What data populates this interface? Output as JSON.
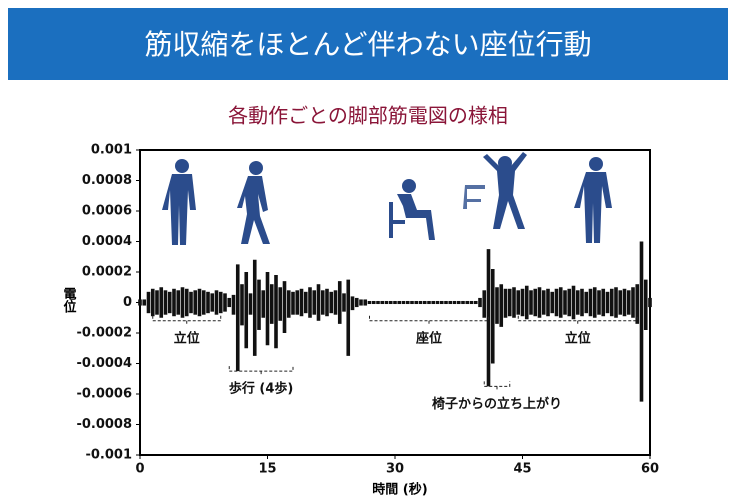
{
  "header": {
    "title": "筋収縮をほとんど伴わない座位行動"
  },
  "chart_data": {
    "type": "band",
    "title": "各動作ごとの脚部筋電図の様相",
    "x_label": "時間 (秒)",
    "y_label": "電位",
    "color": "#111111",
    "xlim": [
      0,
      60
    ],
    "xticks": [
      0,
      15,
      30,
      45,
      60
    ],
    "ylim": [
      -0.001,
      0.001
    ],
    "yticks": [
      0.001,
      0.0008,
      0.0006,
      0.0004,
      0.0002,
      0,
      -0.0002,
      -0.0004,
      -0.0006,
      -0.0008,
      -0.001
    ],
    "x": [
      0,
      0.5,
      1,
      1.5,
      2,
      2.5,
      3,
      3.5,
      4,
      4.5,
      5,
      5.5,
      6,
      6.5,
      7,
      7.5,
      8,
      8.5,
      9,
      9.5,
      10,
      10.5,
      11,
      11.5,
      12,
      12.5,
      13,
      13.5,
      14,
      14.5,
      15,
      15.5,
      16,
      16.5,
      17,
      17.5,
      18,
      18.5,
      19,
      19.5,
      20,
      20.5,
      21,
      21.5,
      22,
      22.5,
      23,
      23.5,
      24,
      24.5,
      25,
      25.5,
      26,
      26.5,
      27,
      27.5,
      28,
      28.5,
      29,
      29.5,
      30,
      30.5,
      31,
      31.5,
      32,
      32.5,
      33,
      33.5,
      34,
      34.5,
      35,
      35.5,
      36,
      36.5,
      37,
      37.5,
      38,
      38.5,
      39,
      39.5,
      40,
      40.5,
      41,
      41.5,
      42,
      42.5,
      43,
      43.5,
      44,
      44.5,
      45,
      45.5,
      46,
      46.5,
      47,
      47.5,
      48,
      48.5,
      49,
      49.5,
      50,
      50.5,
      51,
      51.5,
      52,
      52.5,
      53,
      53.5,
      54,
      54.5,
      55,
      55.5,
      56,
      56.5,
      57,
      57.5,
      58,
      58.5,
      59,
      59.5,
      60
    ],
    "series": [
      {
        "values": [
          2e-05,
          2e-05,
          7e-05,
          9e-05,
          8e-05,
          0.0001,
          8e-05,
          7e-05,
          9e-05,
          8e-05,
          0.0001,
          9e-05,
          7e-05,
          8e-05,
          9e-05,
          8e-05,
          7e-05,
          6e-05,
          8e-05,
          7e-05,
          6e-05,
          3e-05,
          5e-05,
          0.00025,
          0.00012,
          0.0002,
          6e-05,
          0.00028,
          0.00015,
          8e-05,
          0.0002,
          0.00012,
          0.00018,
          0.0001,
          0.00014,
          8e-05,
          7e-05,
          8e-05,
          9e-05,
          7e-05,
          0.0001,
          8e-05,
          0.00012,
          8e-05,
          9e-05,
          7e-05,
          8e-05,
          0.00014,
          6e-05,
          0.00015,
          4e-05,
          3e-05,
          2e-05,
          2e-05,
          1e-05,
          1e-05,
          1e-05,
          1e-05,
          1e-05,
          1e-05,
          1e-05,
          1e-05,
          1e-05,
          1e-05,
          1e-05,
          1e-05,
          1e-05,
          1e-05,
          1e-05,
          1e-05,
          1e-05,
          1e-05,
          1e-05,
          1e-05,
          1e-05,
          1e-05,
          1e-05,
          1e-05,
          1e-05,
          1e-05,
          3e-05,
          8e-05,
          0.00035,
          0.00022,
          0.0001,
          0.00012,
          9e-05,
          9e-05,
          0.0001,
          8e-05,
          9e-05,
          0.00011,
          8e-05,
          9e-05,
          0.0001,
          8e-05,
          9e-05,
          7e-05,
          9e-05,
          0.0001,
          8e-05,
          9e-05,
          0.00011,
          8e-05,
          9e-05,
          7e-05,
          9e-05,
          0.0001,
          8e-05,
          9e-05,
          7e-05,
          9e-05,
          0.0001,
          8e-05,
          9e-05,
          8e-05,
          0.0001,
          0.00012,
          0.0004,
          0.00015,
          3e-05
        ]
      },
      {
        "values": [
          -2e-05,
          -2e-05,
          -7e-05,
          -9e-05,
          -8e-05,
          -0.0001,
          -8e-05,
          -7e-05,
          -9e-05,
          -8e-05,
          -0.0001,
          -9e-05,
          -7e-05,
          -8e-05,
          -9e-05,
          -8e-05,
          -7e-05,
          -6e-05,
          -8e-05,
          -7e-05,
          -6e-05,
          -3e-05,
          -8e-05,
          -0.00045,
          -0.00015,
          -0.0003,
          -8e-05,
          -0.00035,
          -0.00018,
          -0.0001,
          -0.00028,
          -0.00014,
          -0.0003,
          -0.00012,
          -0.0002,
          -0.0001,
          -8e-05,
          -8e-05,
          -9e-05,
          -7e-05,
          -0.0001,
          -8e-05,
          -0.00012,
          -8e-05,
          -9e-05,
          -7e-05,
          -8e-05,
          -0.00014,
          -6e-05,
          -0.00035,
          -5e-05,
          -3e-05,
          -2e-05,
          -2e-05,
          -1e-05,
          -1e-05,
          -1e-05,
          -1e-05,
          -1e-05,
          -1e-05,
          -1e-05,
          -1e-05,
          -1e-05,
          -1e-05,
          -1e-05,
          -1e-05,
          -1e-05,
          -1e-05,
          -1e-05,
          -1e-05,
          -1e-05,
          -1e-05,
          -1e-05,
          -1e-05,
          -1e-05,
          -1e-05,
          -1e-05,
          -1e-05,
          -1e-05,
          -1e-05,
          -3e-05,
          -0.0001,
          -0.00055,
          -0.0004,
          -0.00014,
          -0.00016,
          -0.0001,
          -9e-05,
          -0.0001,
          -8e-05,
          -9e-05,
          -0.00011,
          -8e-05,
          -9e-05,
          -0.0001,
          -8e-05,
          -9e-05,
          -7e-05,
          -9e-05,
          -0.0001,
          -8e-05,
          -9e-05,
          -0.00011,
          -8e-05,
          -9e-05,
          -7e-05,
          -9e-05,
          -0.0001,
          -8e-05,
          -9e-05,
          -7e-05,
          -9e-05,
          -0.0001,
          -8e-05,
          -9e-05,
          -8e-05,
          -0.0001,
          -0.00014,
          -0.00065,
          -0.00018,
          -3e-05
        ]
      }
    ],
    "annotations": [
      {
        "text": "立位",
        "x": [
          1.5,
          9.5
        ],
        "y": -0.00012
      },
      {
        "text": "歩行 (4歩)",
        "x": [
          10.5,
          18
        ],
        "y": -0.00045
      },
      {
        "text": "座位",
        "x": [
          27,
          41
        ],
        "y": -0.00012
      },
      {
        "text": "椅子からの立ち上がり",
        "x": [
          40.5,
          43.5
        ],
        "y": -0.00055
      },
      {
        "text": "立位",
        "x": [
          44.5,
          58.5
        ],
        "y": -0.00012
      }
    ]
  }
}
